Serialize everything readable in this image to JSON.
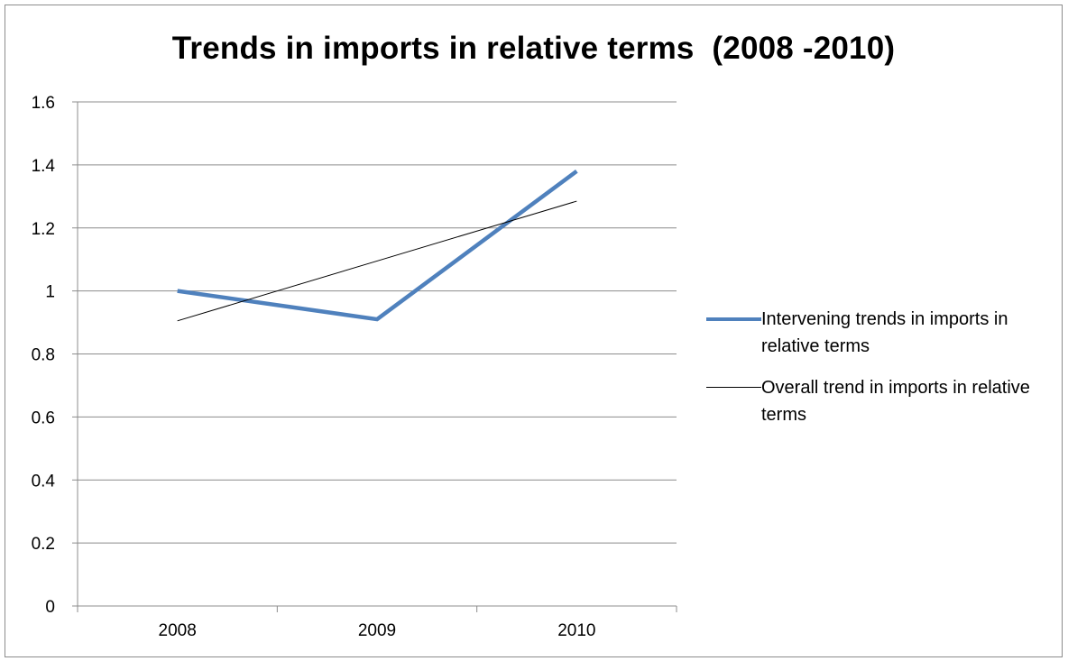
{
  "title": "Trends in imports in relative terms  (2008 -2010)",
  "colors": {
    "series_main": "#4f81bd",
    "series_trend": "#000000",
    "grid": "#8c8c8c",
    "axis": "#8c8c8c"
  },
  "chart_data": {
    "type": "line",
    "title": "Trends in imports in relative terms  (2008 -2010)",
    "xlabel": "",
    "ylabel": "",
    "categories": [
      "2008",
      "2009",
      "2010"
    ],
    "ylim": [
      0,
      1.6
    ],
    "yticks": [
      "0",
      "0.2",
      "0.4",
      "0.6",
      "0.8",
      "1",
      "1.2",
      "1.4",
      "1.6"
    ],
    "grid": true,
    "legend_position": "right",
    "series": [
      {
        "name": "Intervening trends in imports in relative terms",
        "values": [
          1.0,
          0.91,
          1.38
        ],
        "color": "#4f81bd",
        "style": "thick"
      },
      {
        "name": "Overall trend in imports in relative terms",
        "values": [
          0.905,
          1.095,
          1.285
        ],
        "color": "#000000",
        "style": "thin"
      }
    ]
  }
}
